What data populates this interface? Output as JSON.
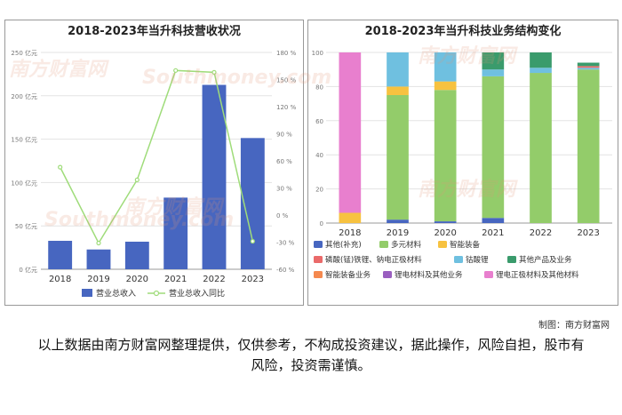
{
  "left_chart": {
    "title": "2018-2023年当升科技营收状况",
    "legend": [
      "营业总收入",
      "营业总收入同比"
    ],
    "colors": {
      "bar": "#4766c0",
      "line": "#9fdc7a"
    }
  },
  "right_chart": {
    "title": "2018-2023年当升科技业务结构变化",
    "legend": [
      "其他(补充)",
      "多元材料",
      "智能装备",
      "磷酸(锰)铁锂、钠电正极材料",
      "钴酸锂",
      "其他产品及业务",
      "智能装备业务",
      "锂电材料及其他业务",
      "锂电正极材料及其他材料"
    ]
  },
  "watermark": {
    "cn": "南方财富网",
    "en": "Southmoney.com"
  },
  "credit": "制图：南方财富网",
  "disclaimer": "以上数据由南方财富网整理提供，仅供参考，不构成投资建议，据此操作，风险自担，股市有风险，投资需谨慎。",
  "chart_data": [
    {
      "type": "bar",
      "categories": [
        "2018",
        "2019",
        "2020",
        "2021",
        "2022",
        "2023"
      ],
      "series": [
        {
          "name": "营业总收入",
          "type": "bar",
          "axis": "left",
          "values": [
            32.8,
            22.8,
            31.8,
            82.6,
            212.6,
            151.3
          ]
        },
        {
          "name": "营业总收入同比",
          "type": "line",
          "axis": "right",
          "values": [
            53,
            -31,
            39,
            160,
            158,
            -29
          ]
        }
      ],
      "y_left": {
        "ticks": [
          0,
          50,
          100,
          150,
          200,
          250
        ],
        "tick_labels": [
          "0 亿元",
          "50 亿元",
          "100 亿元",
          "150 亿元",
          "200 亿元",
          "250 亿元"
        ],
        "range": [
          0,
          250
        ]
      },
      "y_right": {
        "ticks": [
          -60,
          -30,
          0,
          30,
          60,
          90,
          120,
          150,
          180
        ],
        "tick_labels": [
          "-60 %",
          "-30 %",
          "0 %",
          "30 %",
          "60 %",
          "90 %",
          "120 %",
          "150 %",
          "180 %"
        ],
        "range": [
          -60,
          180
        ]
      },
      "grid": true,
      "legend_position": "bottom"
    },
    {
      "type": "bar",
      "stacked": true,
      "categories": [
        "2018",
        "2019",
        "2020",
        "2021",
        "2022",
        "2023"
      ],
      "y": {
        "ticks": [
          0,
          20,
          40,
          60,
          80,
          100
        ],
        "tick_labels": [
          "0",
          "20",
          "40",
          "60",
          "80",
          "100"
        ],
        "range": [
          0,
          100
        ],
        "unit": "%"
      },
      "series": [
        {
          "name": "其他(补充)",
          "color": "#4766c0",
          "values": [
            0,
            2,
            1,
            3,
            0,
            0
          ]
        },
        {
          "name": "多元材料",
          "color": "#93cc6a",
          "values": [
            0,
            73,
            77,
            83,
            88,
            90
          ]
        },
        {
          "name": "智能装备",
          "color": "#f7c240",
          "values": [
            6,
            5,
            5,
            0,
            0,
            0
          ]
        },
        {
          "name": "钴酸锂",
          "color": "#6fc0e0",
          "values": [
            0,
            20,
            17,
            4,
            3,
            1
          ]
        },
        {
          "name": "磷酸(锰)铁锂、钠电正极材料",
          "color": "#ea6a6a",
          "values": [
            0,
            0,
            0,
            0,
            0,
            1
          ]
        },
        {
          "name": "其他产品及业务",
          "color": "#3a9b6c",
          "values": [
            0,
            0,
            0,
            10,
            9,
            2
          ]
        },
        {
          "name": "智能装备业务",
          "color": "#f5894f",
          "values": [
            0,
            0,
            0,
            0,
            0,
            0
          ]
        },
        {
          "name": "锂电材料及其他业务",
          "color": "#9a5fc0",
          "values": [
            0,
            0,
            0,
            0,
            0,
            0
          ]
        },
        {
          "name": "锂电正极材料及其他材料",
          "color": "#e87fce",
          "values": [
            94,
            0,
            0,
            0,
            0,
            0
          ]
        }
      ],
      "grid": true,
      "legend_position": "bottom"
    }
  ]
}
